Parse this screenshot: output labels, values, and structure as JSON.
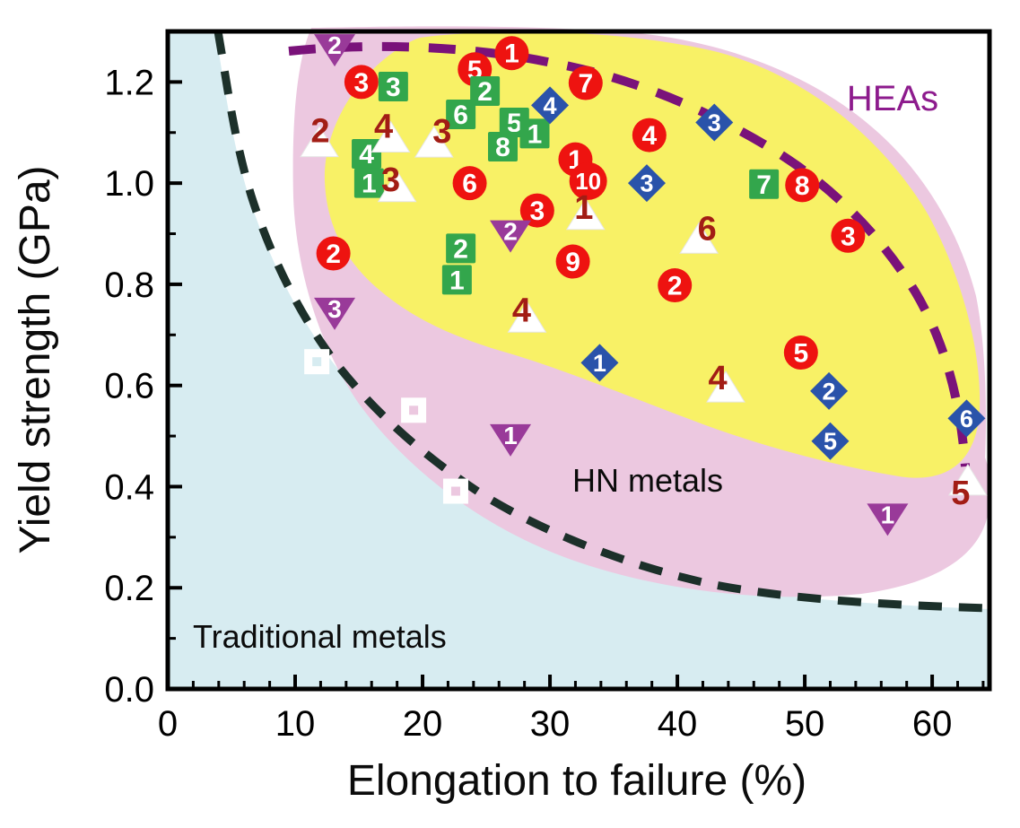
{
  "chart_data": {
    "type": "scatter",
    "title": "",
    "xlabel": "Elongation to failure (%)",
    "ylabel": "Yield strength (GPa)",
    "xlim": [
      0,
      64.5
    ],
    "ylim": [
      0,
      1.3
    ],
    "x_ticks": [
      0,
      10,
      20,
      30,
      40,
      50,
      60
    ],
    "y_ticks": [
      "0.0",
      "0.2",
      "0.4",
      "0.6",
      "0.8",
      "1.0",
      "1.2"
    ],
    "x_minor_step": 2,
    "y_minor_step": 0.1,
    "grid": "off",
    "legend": "none",
    "axis_color": "#000000",
    "regions": [
      {
        "name": "traditional-metals",
        "label": "Traditional metals",
        "color": "#d7ecf1",
        "label_color": "#0b0b0b"
      },
      {
        "name": "hn-metals",
        "label": "HN metals",
        "color": "#ecc8e0",
        "label_color": "#0b0b0b"
      },
      {
        "name": "heas",
        "label": "HEAs",
        "color": "#f8f166",
        "label_color": "#8d1b8d"
      }
    ],
    "boundaries": [
      {
        "name": "traditional-metals-boundary",
        "style": "dashed",
        "color": "#1c302a"
      },
      {
        "name": "heas-boundary",
        "style": "dashed",
        "color": "#7a127a"
      }
    ],
    "series": [
      {
        "name": "red-circle",
        "marker": "circle",
        "color": "#ee1310",
        "number_color": "#ffffff",
        "points": [
          {
            "x": 15.2,
            "y": 1.2,
            "n": "3"
          },
          {
            "x": 24.1,
            "y": 1.225,
            "n": "5"
          },
          {
            "x": 27.0,
            "y": 1.257,
            "n": "1"
          },
          {
            "x": 32.8,
            "y": 1.198,
            "n": "7"
          },
          {
            "x": 37.8,
            "y": 1.095,
            "n": "4"
          },
          {
            "x": 23.7,
            "y": 1.0,
            "n": "6"
          },
          {
            "x": 32.0,
            "y": 1.047,
            "n": "1"
          },
          {
            "x": 33.0,
            "y": 1.004,
            "n": "10"
          },
          {
            "x": 29.0,
            "y": 0.946,
            "n": "3"
          },
          {
            "x": 49.8,
            "y": 0.996,
            "n": "8"
          },
          {
            "x": 53.4,
            "y": 0.896,
            "n": "3"
          },
          {
            "x": 13.0,
            "y": 0.861,
            "n": "2"
          },
          {
            "x": 31.8,
            "y": 0.845,
            "n": "9"
          },
          {
            "x": 39.8,
            "y": 0.798,
            "n": "2"
          },
          {
            "x": 49.7,
            "y": 0.665,
            "n": "5"
          }
        ]
      },
      {
        "name": "green-square",
        "marker": "square",
        "color": "#33a64c",
        "number_color": "#ffffff",
        "points": [
          {
            "x": 17.7,
            "y": 1.191,
            "n": "3"
          },
          {
            "x": 24.9,
            "y": 1.182,
            "n": "2"
          },
          {
            "x": 23.0,
            "y": 1.136,
            "n": "6"
          },
          {
            "x": 27.2,
            "y": 1.12,
            "n": "5"
          },
          {
            "x": 28.8,
            "y": 1.098,
            "n": "1"
          },
          {
            "x": 26.3,
            "y": 1.072,
            "n": "8"
          },
          {
            "x": 15.6,
            "y": 1.058,
            "n": "4"
          },
          {
            "x": 15.8,
            "y": 1.0,
            "n": "1"
          },
          {
            "x": 23.0,
            "y": 0.871,
            "n": "2"
          },
          {
            "x": 22.7,
            "y": 0.809,
            "n": "1"
          },
          {
            "x": 46.8,
            "y": 0.998,
            "n": "7"
          }
        ]
      },
      {
        "name": "blue-diamond",
        "marker": "diamond",
        "color": "#2a53aa",
        "number_color": "#ffffff",
        "points": [
          {
            "x": 30.0,
            "y": 1.154,
            "n": "4"
          },
          {
            "x": 37.6,
            "y": 1.0,
            "n": "3"
          },
          {
            "x": 42.9,
            "y": 1.12,
            "n": "3"
          },
          {
            "x": 33.9,
            "y": 0.645,
            "n": "1"
          },
          {
            "x": 51.9,
            "y": 0.589,
            "n": "2"
          },
          {
            "x": 52.0,
            "y": 0.49,
            "n": "5"
          },
          {
            "x": 62.7,
            "y": 0.535,
            "n": "6"
          }
        ]
      },
      {
        "name": "white-triangle-up",
        "marker": "triangle-up",
        "color": "#ffffff",
        "number_color": "#a21d15",
        "points": [
          {
            "x": 11.9,
            "y": 1.079,
            "n": "2",
            "dx": 1,
            "dy": -14
          },
          {
            "x": 17.5,
            "y": 1.088,
            "n": "4",
            "dx": -8,
            "dy": -14
          },
          {
            "x": 20.9,
            "y": 1.078,
            "n": "3",
            "dx": 9,
            "dy": -14
          },
          {
            "x": 18.0,
            "y": 0.99,
            "n": "3",
            "dx": -7,
            "dy": -10
          },
          {
            "x": 32.8,
            "y": 0.935,
            "n": "1",
            "dx": -2,
            "dy": -10
          },
          {
            "x": 41.7,
            "y": 0.888,
            "n": "6",
            "dx": 9,
            "dy": -13
          },
          {
            "x": 28.2,
            "y": 0.732,
            "n": "4",
            "dx": -6,
            "dy": -10
          },
          {
            "x": 43.8,
            "y": 0.594,
            "n": "4",
            "dx": -9,
            "dy": -12
          },
          {
            "x": 62.8,
            "y": 0.41,
            "n": "5",
            "dx": -8,
            "dy": 12
          }
        ]
      },
      {
        "name": "purple-triangle-down",
        "marker": "triangle-down",
        "color": "#993a99",
        "number_color": "#ffffff",
        "points": [
          {
            "x": 13.1,
            "y": 1.266,
            "n": "2"
          },
          {
            "x": 26.9,
            "y": 0.898,
            "n": "2"
          },
          {
            "x": 13.1,
            "y": 0.745,
            "n": "3"
          },
          {
            "x": 26.9,
            "y": 0.495,
            "n": "1"
          },
          {
            "x": 56.5,
            "y": 0.338,
            "n": "1"
          }
        ]
      },
      {
        "name": "white-open-square",
        "marker": "open-square",
        "color": "#ffffff",
        "number_color": "",
        "points": [
          {
            "x": 11.7,
            "y": 0.647,
            "n": ""
          },
          {
            "x": 19.3,
            "y": 0.551,
            "n": ""
          },
          {
            "x": 22.6,
            "y": 0.391,
            "n": ""
          }
        ]
      }
    ]
  }
}
